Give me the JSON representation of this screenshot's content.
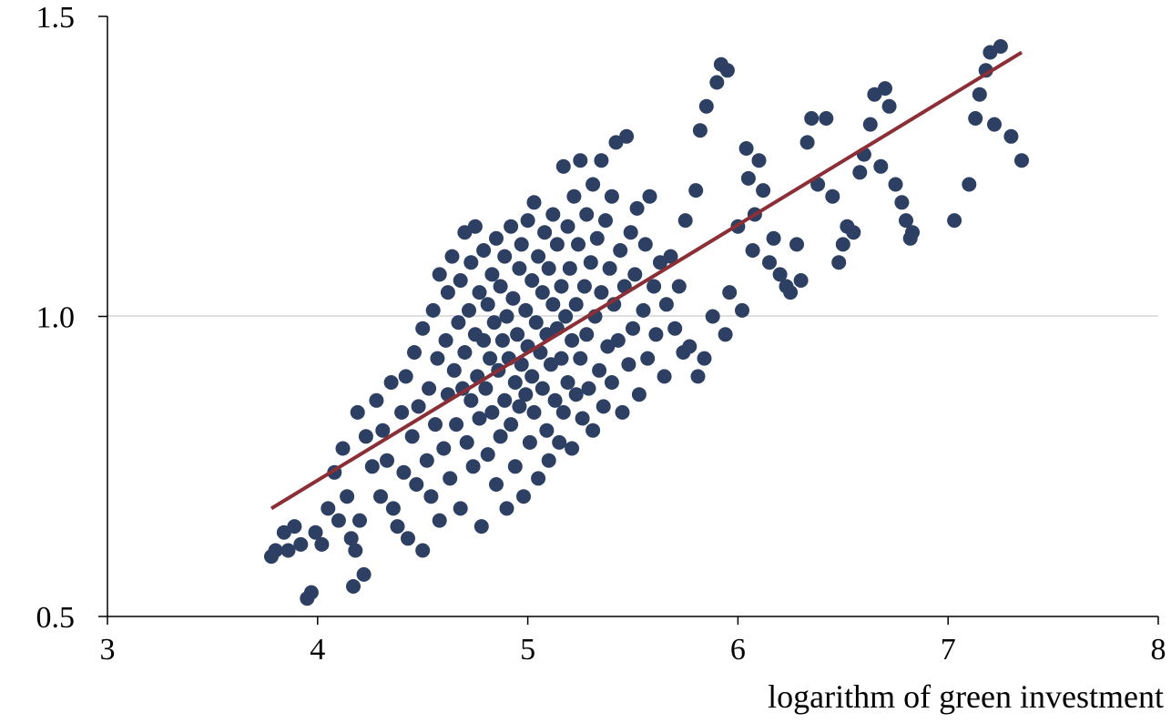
{
  "chart_data": {
    "type": "scatter",
    "title": "",
    "xlabel": "logarithm of green investment",
    "ylabel": "",
    "xlim": [
      3,
      8
    ],
    "ylim": [
      0.5,
      1.5
    ],
    "x_ticks": [
      "3",
      "4",
      "5",
      "6",
      "7",
      "8"
    ],
    "y_ticks": [
      "0.5",
      "1.0",
      "1.5"
    ],
    "grid": "horizontal at 1.0",
    "legend": "none",
    "series": [
      {
        "kind": "points",
        "color": "#2d4063",
        "points": [
          [
            3.78,
            0.6
          ],
          [
            3.8,
            0.61
          ],
          [
            3.84,
            0.64
          ],
          [
            3.86,
            0.61
          ],
          [
            3.89,
            0.65
          ],
          [
            3.92,
            0.62
          ],
          [
            3.95,
            0.53
          ],
          [
            3.97,
            0.54
          ],
          [
            3.99,
            0.64
          ],
          [
            4.02,
            0.62
          ],
          [
            4.05,
            0.68
          ],
          [
            4.08,
            0.74
          ],
          [
            4.1,
            0.66
          ],
          [
            4.12,
            0.78
          ],
          [
            4.14,
            0.7
          ],
          [
            4.16,
            0.63
          ],
          [
            4.17,
            0.55
          ],
          [
            4.18,
            0.61
          ],
          [
            4.2,
            0.66
          ],
          [
            4.22,
            0.57
          ],
          [
            4.19,
            0.84
          ],
          [
            4.23,
            0.8
          ],
          [
            4.26,
            0.75
          ],
          [
            4.28,
            0.86
          ],
          [
            4.3,
            0.7
          ],
          [
            4.31,
            0.81
          ],
          [
            4.33,
            0.76
          ],
          [
            4.35,
            0.89
          ],
          [
            4.36,
            0.68
          ],
          [
            4.38,
            0.65
          ],
          [
            4.4,
            0.84
          ],
          [
            4.41,
            0.74
          ],
          [
            4.42,
            0.9
          ],
          [
            4.43,
            0.63
          ],
          [
            4.45,
            0.8
          ],
          [
            4.46,
            0.94
          ],
          [
            4.47,
            0.72
          ],
          [
            4.48,
            0.85
          ],
          [
            4.5,
            0.61
          ],
          [
            4.5,
            0.98
          ],
          [
            4.52,
            0.76
          ],
          [
            4.53,
            0.88
          ],
          [
            4.54,
            0.7
          ],
          [
            4.55,
            1.01
          ],
          [
            4.56,
            0.82
          ],
          [
            4.57,
            0.93
          ],
          [
            4.58,
            0.66
          ],
          [
            4.58,
            1.07
          ],
          [
            4.6,
            0.78
          ],
          [
            4.61,
            0.96
          ],
          [
            4.62,
            0.87
          ],
          [
            4.62,
            1.04
          ],
          [
            4.63,
            0.73
          ],
          [
            4.64,
            1.1
          ],
          [
            4.65,
            0.91
          ],
          [
            4.66,
            0.82
          ],
          [
            4.67,
            0.99
          ],
          [
            4.68,
            0.68
          ],
          [
            4.68,
            1.06
          ],
          [
            4.69,
            0.88
          ],
          [
            4.7,
            0.94
          ],
          [
            4.7,
            1.14
          ],
          [
            4.71,
            0.79
          ],
          [
            4.72,
            1.01
          ],
          [
            4.73,
            0.86
          ],
          [
            4.73,
            1.09
          ],
          [
            4.74,
            0.75
          ],
          [
            4.75,
            0.97
          ],
          [
            4.75,
            1.15
          ],
          [
            4.76,
            0.9
          ],
          [
            4.77,
            1.04
          ],
          [
            4.77,
            0.83
          ],
          [
            4.78,
            0.65
          ],
          [
            4.79,
            0.96
          ],
          [
            4.79,
            1.11
          ],
          [
            4.8,
            0.88
          ],
          [
            4.81,
            1.02
          ],
          [
            4.81,
            0.77
          ],
          [
            4.82,
            0.93
          ],
          [
            4.83,
            1.07
          ],
          [
            4.83,
            0.84
          ],
          [
            4.84,
            0.99
          ],
          [
            4.85,
            0.72
          ],
          [
            4.85,
            1.13
          ],
          [
            4.86,
            0.91
          ],
          [
            4.87,
            1.05
          ],
          [
            4.87,
            0.8
          ],
          [
            4.88,
            0.96
          ],
          [
            4.89,
            0.86
          ],
          [
            4.89,
            1.1
          ],
          [
            4.9,
            0.68
          ],
          [
            4.9,
            1.0
          ],
          [
            4.91,
            0.93
          ],
          [
            4.92,
            1.15
          ],
          [
            4.92,
            0.82
          ],
          [
            4.93,
            1.03
          ],
          [
            4.94,
            0.89
          ],
          [
            4.94,
            0.75
          ],
          [
            4.95,
            0.97
          ],
          [
            4.96,
            1.08
          ],
          [
            4.96,
            0.85
          ],
          [
            4.97,
            1.12
          ],
          [
            4.97,
            0.92
          ],
          [
            4.98,
            0.7
          ],
          [
            4.99,
            1.01
          ],
          [
            4.99,
            0.87
          ],
          [
            5.0,
            1.16
          ],
          [
            5.0,
            0.95
          ],
          [
            5.01,
            0.79
          ],
          [
            5.02,
            1.06
          ],
          [
            5.02,
            0.9
          ],
          [
            5.03,
            1.19
          ],
          [
            5.03,
            0.84
          ],
          [
            5.04,
            0.99
          ],
          [
            5.05,
            1.1
          ],
          [
            5.05,
            0.73
          ],
          [
            5.06,
            0.94
          ],
          [
            5.07,
            1.04
          ],
          [
            5.07,
            0.88
          ],
          [
            5.08,
            1.14
          ],
          [
            5.09,
            0.81
          ],
          [
            5.09,
            0.97
          ],
          [
            5.1,
            1.08
          ],
          [
            5.1,
            0.76
          ],
          [
            5.11,
            0.92
          ],
          [
            5.12,
            1.02
          ],
          [
            5.12,
            1.17
          ],
          [
            5.13,
            0.86
          ],
          [
            5.14,
            0.98
          ],
          [
            5.14,
            1.12
          ],
          [
            5.15,
            0.79
          ],
          [
            5.16,
            0.93
          ],
          [
            5.16,
            1.05
          ],
          [
            5.17,
            1.25
          ],
          [
            5.17,
            0.84
          ],
          [
            5.18,
            1.0
          ],
          [
            5.19,
            1.15
          ],
          [
            5.19,
            0.89
          ],
          [
            5.2,
            1.08
          ],
          [
            5.21,
            0.78
          ],
          [
            5.21,
            0.96
          ],
          [
            5.22,
            1.2
          ],
          [
            5.23,
            1.02
          ],
          [
            5.23,
            0.87
          ],
          [
            5.24,
            1.12
          ],
          [
            5.25,
            0.93
          ],
          [
            5.25,
            1.26
          ],
          [
            5.26,
            0.83
          ],
          [
            5.27,
            1.05
          ],
          [
            5.28,
            0.97
          ],
          [
            5.28,
            1.17
          ],
          [
            5.29,
            0.88
          ],
          [
            5.3,
            1.09
          ],
          [
            5.31,
            1.22
          ],
          [
            5.31,
            0.81
          ],
          [
            5.32,
            1.0
          ],
          [
            5.33,
            1.13
          ],
          [
            5.34,
            0.91
          ],
          [
            5.35,
            1.26
          ],
          [
            5.35,
            1.04
          ],
          [
            5.36,
            0.85
          ],
          [
            5.37,
            1.16
          ],
          [
            5.38,
            0.95
          ],
          [
            5.39,
            1.08
          ],
          [
            5.4,
            1.2
          ],
          [
            5.4,
            0.89
          ],
          [
            5.41,
            1.02
          ],
          [
            5.42,
            1.29
          ],
          [
            5.43,
            0.96
          ],
          [
            5.44,
            1.11
          ],
          [
            5.45,
            0.84
          ],
          [
            5.46,
            1.05
          ],
          [
            5.47,
            1.3
          ],
          [
            5.48,
            0.92
          ],
          [
            5.49,
            1.14
          ],
          [
            5.5,
            0.98
          ],
          [
            5.51,
            1.07
          ],
          [
            5.52,
            1.18
          ],
          [
            5.53,
            0.87
          ],
          [
            5.55,
            1.01
          ],
          [
            5.56,
            1.12
          ],
          [
            5.57,
            0.93
          ],
          [
            5.58,
            1.2
          ],
          [
            5.6,
            1.05
          ],
          [
            5.61,
            0.97
          ],
          [
            5.63,
            1.09
          ],
          [
            5.65,
            0.9
          ],
          [
            5.66,
            1.02
          ],
          [
            5.68,
            1.1
          ],
          [
            5.7,
            0.98
          ],
          [
            5.72,
            1.05
          ],
          [
            5.74,
            0.94
          ],
          [
            5.75,
            1.16
          ],
          [
            5.77,
            0.95
          ],
          [
            5.8,
            1.21
          ],
          [
            5.81,
            0.9
          ],
          [
            5.84,
            0.93
          ],
          [
            5.82,
            1.31
          ],
          [
            5.85,
            1.35
          ],
          [
            5.88,
            1.0
          ],
          [
            5.9,
            1.39
          ],
          [
            5.92,
            1.42
          ],
          [
            5.94,
            0.97
          ],
          [
            5.95,
            1.41
          ],
          [
            5.96,
            1.04
          ],
          [
            6.0,
            1.15
          ],
          [
            6.02,
            1.01
          ],
          [
            6.04,
            1.28
          ],
          [
            6.05,
            1.23
          ],
          [
            6.07,
            1.11
          ],
          [
            6.08,
            1.17
          ],
          [
            6.1,
            1.26
          ],
          [
            6.12,
            1.21
          ],
          [
            6.15,
            1.09
          ],
          [
            6.17,
            1.13
          ],
          [
            6.2,
            1.07
          ],
          [
            6.23,
            1.05
          ],
          [
            6.25,
            1.04
          ],
          [
            6.28,
            1.12
          ],
          [
            6.3,
            1.06
          ],
          [
            6.33,
            1.29
          ],
          [
            6.35,
            1.33
          ],
          [
            6.38,
            1.22
          ],
          [
            6.42,
            1.33
          ],
          [
            6.45,
            1.2
          ],
          [
            6.48,
            1.09
          ],
          [
            6.5,
            1.12
          ],
          [
            6.52,
            1.15
          ],
          [
            6.55,
            1.14
          ],
          [
            6.58,
            1.24
          ],
          [
            6.6,
            1.27
          ],
          [
            6.63,
            1.32
          ],
          [
            6.65,
            1.37
          ],
          [
            6.68,
            1.25
          ],
          [
            6.7,
            1.38
          ],
          [
            6.72,
            1.35
          ],
          [
            6.75,
            1.22
          ],
          [
            6.78,
            1.19
          ],
          [
            6.8,
            1.16
          ],
          [
            6.82,
            1.13
          ],
          [
            6.83,
            1.14
          ],
          [
            7.03,
            1.16
          ],
          [
            7.1,
            1.22
          ],
          [
            7.13,
            1.33
          ],
          [
            7.15,
            1.37
          ],
          [
            7.18,
            1.41
          ],
          [
            7.2,
            1.44
          ],
          [
            7.22,
            1.32
          ],
          [
            7.25,
            1.45
          ],
          [
            7.3,
            1.3
          ],
          [
            7.35,
            1.26
          ]
        ]
      },
      {
        "kind": "trend-line",
        "color": "#8b2e35",
        "start": [
          3.78,
          0.68
        ],
        "end": [
          7.35,
          1.44
        ]
      }
    ]
  }
}
